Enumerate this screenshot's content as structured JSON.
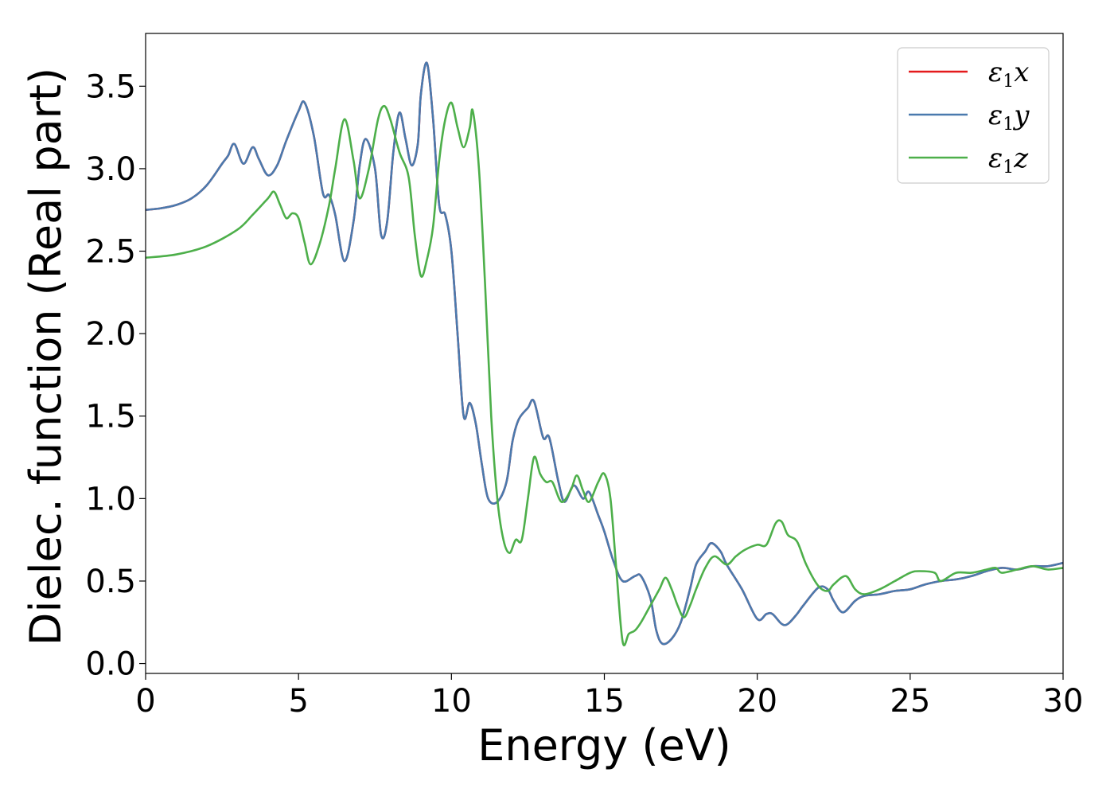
{
  "chart_data": {
    "type": "line",
    "title": "",
    "xlabel": "Energy (eV)",
    "ylabel": "Dielec. function (Real part)",
    "xlim": [
      0,
      30
    ],
    "ylim": [
      -0.06,
      3.82
    ],
    "xticks": [
      0,
      5,
      10,
      15,
      20,
      25,
      30
    ],
    "xtick_labels": [
      "0",
      "5",
      "10",
      "15",
      "20",
      "25",
      "30"
    ],
    "yticks": [
      0.0,
      0.5,
      1.0,
      1.5,
      2.0,
      2.5,
      3.0,
      3.5
    ],
    "ytick_labels": [
      "0.0",
      "0.5",
      "1.0",
      "1.5",
      "2.0",
      "2.5",
      "3.0",
      "3.5"
    ],
    "grid": false,
    "legend_position": "top-right",
    "series": [
      {
        "name": "ε1x",
        "color": "#e41a1c",
        "points": [
          [
            0,
            2.75
          ],
          [
            0.5,
            2.76
          ],
          [
            1,
            2.78
          ],
          [
            1.5,
            2.82
          ],
          [
            2,
            2.9
          ],
          [
            2.5,
            3.03
          ],
          [
            2.7,
            3.08
          ],
          [
            2.9,
            3.15
          ],
          [
            3.2,
            3.03
          ],
          [
            3.5,
            3.13
          ],
          [
            3.7,
            3.06
          ],
          [
            4,
            2.96
          ],
          [
            4.3,
            3.02
          ],
          [
            4.6,
            3.17
          ],
          [
            5,
            3.35
          ],
          [
            5.2,
            3.4
          ],
          [
            5.5,
            3.2
          ],
          [
            5.8,
            2.85
          ],
          [
            6,
            2.84
          ],
          [
            6.2,
            2.72
          ],
          [
            6.5,
            2.44
          ],
          [
            6.8,
            2.68
          ],
          [
            7,
            3.02
          ],
          [
            7.2,
            3.18
          ],
          [
            7.5,
            3.0
          ],
          [
            7.7,
            2.6
          ],
          [
            7.9,
            2.68
          ],
          [
            8.1,
            3.1
          ],
          [
            8.3,
            3.34
          ],
          [
            8.5,
            3.18
          ],
          [
            8.7,
            3.02
          ],
          [
            8.9,
            3.15
          ],
          [
            9,
            3.45
          ],
          [
            9.2,
            3.64
          ],
          [
            9.4,
            3.3
          ],
          [
            9.6,
            2.78
          ],
          [
            9.8,
            2.72
          ],
          [
            10,
            2.5
          ],
          [
            10.2,
            2.0
          ],
          [
            10.4,
            1.5
          ],
          [
            10.6,
            1.58
          ],
          [
            10.8,
            1.45
          ],
          [
            11,
            1.2
          ],
          [
            11.2,
            1.0
          ],
          [
            11.5,
            0.98
          ],
          [
            11.8,
            1.1
          ],
          [
            12,
            1.35
          ],
          [
            12.2,
            1.48
          ],
          [
            12.5,
            1.55
          ],
          [
            12.7,
            1.59
          ],
          [
            13,
            1.37
          ],
          [
            13.2,
            1.37
          ],
          [
            13.5,
            1.1
          ],
          [
            13.7,
            0.98
          ],
          [
            14,
            1.08
          ],
          [
            14.3,
            1.0
          ],
          [
            14.5,
            1.04
          ],
          [
            14.8,
            0.9
          ],
          [
            15,
            0.8
          ],
          [
            15.3,
            0.62
          ],
          [
            15.6,
            0.5
          ],
          [
            16,
            0.53
          ],
          [
            16.2,
            0.53
          ],
          [
            16.5,
            0.4
          ],
          [
            16.7,
            0.2
          ],
          [
            16.9,
            0.12
          ],
          [
            17.2,
            0.15
          ],
          [
            17.5,
            0.25
          ],
          [
            17.8,
            0.45
          ],
          [
            18,
            0.6
          ],
          [
            18.3,
            0.68
          ],
          [
            18.5,
            0.73
          ],
          [
            18.8,
            0.68
          ],
          [
            19,
            0.6
          ],
          [
            19.5,
            0.45
          ],
          [
            20,
            0.27
          ],
          [
            20.3,
            0.3
          ],
          [
            20.5,
            0.3
          ],
          [
            20.8,
            0.24
          ],
          [
            21,
            0.24
          ],
          [
            21.3,
            0.3
          ],
          [
            21.5,
            0.35
          ],
          [
            22,
            0.46
          ],
          [
            22.3,
            0.45
          ],
          [
            22.5,
            0.38
          ],
          [
            22.8,
            0.31
          ],
          [
            23.2,
            0.38
          ],
          [
            23.5,
            0.41
          ],
          [
            24,
            0.42
          ],
          [
            24.5,
            0.44
          ],
          [
            25,
            0.45
          ],
          [
            25.5,
            0.48
          ],
          [
            26,
            0.5
          ],
          [
            26.5,
            0.51
          ],
          [
            27,
            0.53
          ],
          [
            27.5,
            0.56
          ],
          [
            28,
            0.58
          ],
          [
            28.5,
            0.57
          ],
          [
            29,
            0.59
          ],
          [
            29.5,
            0.59
          ],
          [
            30,
            0.61
          ]
        ]
      },
      {
        "name": "ε1y",
        "color": "#4a7aae",
        "points": [
          [
            0,
            2.75
          ],
          [
            0.5,
            2.76
          ],
          [
            1,
            2.78
          ],
          [
            1.5,
            2.82
          ],
          [
            2,
            2.9
          ],
          [
            2.5,
            3.03
          ],
          [
            2.7,
            3.08
          ],
          [
            2.9,
            3.15
          ],
          [
            3.2,
            3.03
          ],
          [
            3.5,
            3.13
          ],
          [
            3.7,
            3.06
          ],
          [
            4,
            2.96
          ],
          [
            4.3,
            3.02
          ],
          [
            4.6,
            3.17
          ],
          [
            5,
            3.35
          ],
          [
            5.2,
            3.4
          ],
          [
            5.5,
            3.2
          ],
          [
            5.8,
            2.85
          ],
          [
            6,
            2.84
          ],
          [
            6.2,
            2.72
          ],
          [
            6.5,
            2.44
          ],
          [
            6.8,
            2.68
          ],
          [
            7,
            3.02
          ],
          [
            7.2,
            3.18
          ],
          [
            7.5,
            3.0
          ],
          [
            7.7,
            2.6
          ],
          [
            7.9,
            2.68
          ],
          [
            8.1,
            3.1
          ],
          [
            8.3,
            3.34
          ],
          [
            8.5,
            3.18
          ],
          [
            8.7,
            3.02
          ],
          [
            8.9,
            3.15
          ],
          [
            9,
            3.45
          ],
          [
            9.2,
            3.64
          ],
          [
            9.4,
            3.3
          ],
          [
            9.6,
            2.78
          ],
          [
            9.8,
            2.72
          ],
          [
            10,
            2.5
          ],
          [
            10.2,
            2.0
          ],
          [
            10.4,
            1.5
          ],
          [
            10.6,
            1.58
          ],
          [
            10.8,
            1.45
          ],
          [
            11,
            1.2
          ],
          [
            11.2,
            1.0
          ],
          [
            11.5,
            0.98
          ],
          [
            11.8,
            1.1
          ],
          [
            12,
            1.35
          ],
          [
            12.2,
            1.48
          ],
          [
            12.5,
            1.55
          ],
          [
            12.7,
            1.59
          ],
          [
            13,
            1.37
          ],
          [
            13.2,
            1.37
          ],
          [
            13.5,
            1.1
          ],
          [
            13.7,
            0.98
          ],
          [
            14,
            1.08
          ],
          [
            14.3,
            1.0
          ],
          [
            14.5,
            1.04
          ],
          [
            14.8,
            0.9
          ],
          [
            15,
            0.8
          ],
          [
            15.3,
            0.62
          ],
          [
            15.6,
            0.5
          ],
          [
            16,
            0.53
          ],
          [
            16.2,
            0.53
          ],
          [
            16.5,
            0.4
          ],
          [
            16.7,
            0.2
          ],
          [
            16.9,
            0.12
          ],
          [
            17.2,
            0.15
          ],
          [
            17.5,
            0.25
          ],
          [
            17.8,
            0.45
          ],
          [
            18,
            0.6
          ],
          [
            18.3,
            0.68
          ],
          [
            18.5,
            0.73
          ],
          [
            18.8,
            0.68
          ],
          [
            19,
            0.6
          ],
          [
            19.5,
            0.45
          ],
          [
            20,
            0.27
          ],
          [
            20.3,
            0.3
          ],
          [
            20.5,
            0.3
          ],
          [
            20.8,
            0.24
          ],
          [
            21,
            0.24
          ],
          [
            21.3,
            0.3
          ],
          [
            21.5,
            0.35
          ],
          [
            22,
            0.46
          ],
          [
            22.3,
            0.45
          ],
          [
            22.5,
            0.38
          ],
          [
            22.8,
            0.31
          ],
          [
            23.2,
            0.38
          ],
          [
            23.5,
            0.41
          ],
          [
            24,
            0.42
          ],
          [
            24.5,
            0.44
          ],
          [
            25,
            0.45
          ],
          [
            25.5,
            0.48
          ],
          [
            26,
            0.5
          ],
          [
            26.5,
            0.51
          ],
          [
            27,
            0.53
          ],
          [
            27.5,
            0.56
          ],
          [
            28,
            0.58
          ],
          [
            28.5,
            0.57
          ],
          [
            29,
            0.59
          ],
          [
            29.5,
            0.59
          ],
          [
            30,
            0.61
          ]
        ]
      },
      {
        "name": "ε1z",
        "color": "#4daf4a",
        "points": [
          [
            0,
            2.46
          ],
          [
            1,
            2.48
          ],
          [
            2,
            2.53
          ],
          [
            3,
            2.63
          ],
          [
            3.5,
            2.72
          ],
          [
            4,
            2.82
          ],
          [
            4.2,
            2.86
          ],
          [
            4.4,
            2.78
          ],
          [
            4.6,
            2.7
          ],
          [
            4.8,
            2.73
          ],
          [
            5,
            2.7
          ],
          [
            5.2,
            2.55
          ],
          [
            5.4,
            2.42
          ],
          [
            5.7,
            2.55
          ],
          [
            6,
            2.78
          ],
          [
            6.2,
            3.0
          ],
          [
            6.5,
            3.3
          ],
          [
            6.8,
            3.05
          ],
          [
            7,
            2.82
          ],
          [
            7.3,
            3.0
          ],
          [
            7.6,
            3.3
          ],
          [
            7.8,
            3.38
          ],
          [
            8,
            3.3
          ],
          [
            8.3,
            3.1
          ],
          [
            8.6,
            2.95
          ],
          [
            8.8,
            2.6
          ],
          [
            9,
            2.35
          ],
          [
            9.2,
            2.45
          ],
          [
            9.4,
            2.65
          ],
          [
            9.6,
            3.05
          ],
          [
            9.8,
            3.3
          ],
          [
            10,
            3.4
          ],
          [
            10.2,
            3.25
          ],
          [
            10.4,
            3.13
          ],
          [
            10.6,
            3.25
          ],
          [
            10.7,
            3.35
          ],
          [
            10.9,
            3.0
          ],
          [
            11.1,
            2.3
          ],
          [
            11.3,
            1.5
          ],
          [
            11.5,
            1.0
          ],
          [
            11.7,
            0.75
          ],
          [
            11.9,
            0.67
          ],
          [
            12.1,
            0.75
          ],
          [
            12.3,
            0.75
          ],
          [
            12.5,
            1.0
          ],
          [
            12.7,
            1.25
          ],
          [
            12.9,
            1.15
          ],
          [
            13.1,
            1.1
          ],
          [
            13.3,
            1.1
          ],
          [
            13.6,
            0.98
          ],
          [
            13.9,
            1.05
          ],
          [
            14.1,
            1.14
          ],
          [
            14.3,
            1.05
          ],
          [
            14.5,
            0.98
          ],
          [
            14.8,
            1.1
          ],
          [
            15,
            1.15
          ],
          [
            15.2,
            1.0
          ],
          [
            15.4,
            0.55
          ],
          [
            15.6,
            0.13
          ],
          [
            15.8,
            0.18
          ],
          [
            16,
            0.2
          ],
          [
            16.2,
            0.25
          ],
          [
            16.5,
            0.35
          ],
          [
            16.8,
            0.45
          ],
          [
            17,
            0.52
          ],
          [
            17.2,
            0.45
          ],
          [
            17.4,
            0.35
          ],
          [
            17.6,
            0.28
          ],
          [
            17.8,
            0.35
          ],
          [
            18,
            0.45
          ],
          [
            18.3,
            0.58
          ],
          [
            18.6,
            0.65
          ],
          [
            19,
            0.6
          ],
          [
            19.3,
            0.65
          ],
          [
            19.6,
            0.69
          ],
          [
            20,
            0.72
          ],
          [
            20.3,
            0.72
          ],
          [
            20.6,
            0.85
          ],
          [
            20.8,
            0.86
          ],
          [
            21,
            0.78
          ],
          [
            21.3,
            0.74
          ],
          [
            21.6,
            0.6
          ],
          [
            22,
            0.47
          ],
          [
            22.3,
            0.44
          ],
          [
            22.5,
            0.48
          ],
          [
            22.9,
            0.53
          ],
          [
            23.2,
            0.45
          ],
          [
            23.5,
            0.42
          ],
          [
            24,
            0.45
          ],
          [
            24.5,
            0.5
          ],
          [
            25,
            0.55
          ],
          [
            25.3,
            0.56
          ],
          [
            25.8,
            0.55
          ],
          [
            26,
            0.5
          ],
          [
            26.5,
            0.55
          ],
          [
            27,
            0.55
          ],
          [
            27.5,
            0.57
          ],
          [
            27.8,
            0.58
          ],
          [
            28,
            0.55
          ],
          [
            28.5,
            0.57
          ],
          [
            29,
            0.59
          ],
          [
            29.5,
            0.57
          ],
          [
            30,
            0.58
          ]
        ]
      }
    ]
  }
}
